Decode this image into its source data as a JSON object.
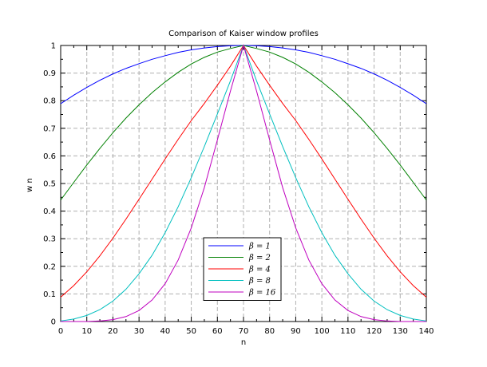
{
  "chart_data": {
    "type": "line",
    "title": "Comparison of Kaiser window profiles",
    "xlabel": "n",
    "ylabel": "w n",
    "xlim": [
      0,
      140
    ],
    "ylim": [
      0,
      1
    ],
    "xticks": [
      0,
      10,
      20,
      30,
      40,
      50,
      60,
      70,
      80,
      90,
      100,
      110,
      120,
      130,
      140
    ],
    "yticks": [
      0,
      0.1,
      0.2,
      0.3,
      0.4,
      0.5,
      0.6,
      0.7,
      0.8,
      0.9,
      1
    ],
    "xtick_labels": [
      "0",
      "10",
      "20",
      "30",
      "40",
      "50",
      "60",
      "70",
      "80",
      "90",
      "100",
      "110",
      "120",
      "130",
      "140"
    ],
    "ytick_labels": [
      "0",
      "0.1",
      "0.2",
      "0.3",
      "0.4",
      "0.5",
      "0.6",
      "0.7",
      "0.8",
      "0.9",
      "1"
    ],
    "grid": true,
    "legend_position": "bottom-center",
    "x": [
      0,
      5,
      10,
      15,
      20,
      25,
      30,
      35,
      40,
      45,
      50,
      55,
      60,
      65,
      70,
      75,
      80,
      85,
      90,
      95,
      100,
      105,
      110,
      115,
      120,
      125,
      130,
      135,
      140
    ],
    "series": [
      {
        "name": "β = 1",
        "beta": 1,
        "color": "#0000ff",
        "values": [
          0.789,
          0.82,
          0.848,
          0.874,
          0.897,
          0.917,
          0.934,
          0.95,
          0.963,
          0.975,
          0.984,
          0.991,
          0.996,
          0.999,
          1.0,
          0.999,
          0.996,
          0.991,
          0.984,
          0.975,
          0.963,
          0.95,
          0.934,
          0.917,
          0.897,
          0.874,
          0.848,
          0.82,
          0.789
        ]
      },
      {
        "name": "β = 2",
        "beta": 2,
        "color": "#008000",
        "values": [
          0.44,
          0.504,
          0.567,
          0.627,
          0.684,
          0.737,
          0.785,
          0.829,
          0.868,
          0.903,
          0.933,
          0.957,
          0.976,
          0.989,
          1.0,
          0.989,
          0.976,
          0.957,
          0.933,
          0.903,
          0.868,
          0.829,
          0.785,
          0.737,
          0.684,
          0.627,
          0.567,
          0.504,
          0.44
        ]
      },
      {
        "name": "β = 4",
        "beta": 4,
        "color": "#ff0000",
        "values": [
          0.088,
          0.13,
          0.18,
          0.238,
          0.302,
          0.371,
          0.443,
          0.516,
          0.589,
          0.66,
          0.728,
          0.79,
          0.856,
          0.925,
          1.0,
          0.925,
          0.856,
          0.79,
          0.728,
          0.66,
          0.589,
          0.516,
          0.443,
          0.371,
          0.302,
          0.238,
          0.18,
          0.13,
          0.088
        ]
      },
      {
        "name": "β = 8",
        "beta": 8,
        "color": "#00bfbf",
        "values": [
          0.002,
          0.009,
          0.022,
          0.043,
          0.074,
          0.117,
          0.173,
          0.24,
          0.322,
          0.416,
          0.521,
          0.634,
          0.752,
          0.872,
          1.0,
          0.872,
          0.752,
          0.634,
          0.521,
          0.416,
          0.322,
          0.24,
          0.173,
          0.117,
          0.074,
          0.043,
          0.022,
          0.009,
          0.002
        ]
      },
      {
        "name": "β = 16",
        "beta": 16,
        "color": "#bf00bf",
        "values": [
          0.0,
          0.0,
          0.0,
          0.002,
          0.007,
          0.018,
          0.04,
          0.078,
          0.137,
          0.223,
          0.339,
          0.485,
          0.658,
          0.835,
          1.0,
          0.835,
          0.658,
          0.485,
          0.339,
          0.223,
          0.137,
          0.078,
          0.04,
          0.018,
          0.007,
          0.002,
          0.0,
          0.0,
          0.0
        ]
      }
    ]
  }
}
